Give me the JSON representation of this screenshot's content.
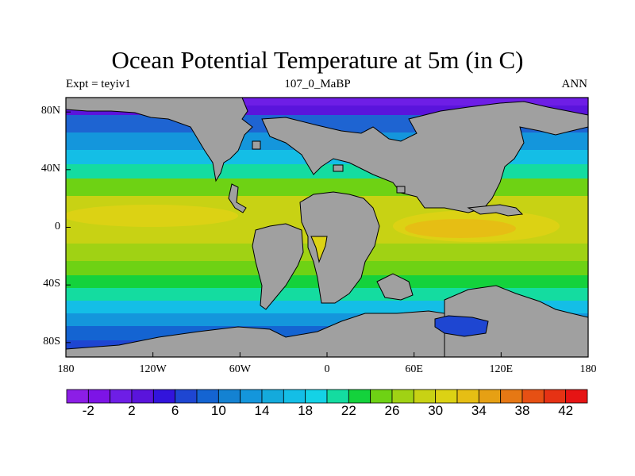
{
  "title": "Ocean Potential Temperature at 5m (in C)",
  "left_string": "Expt = teyiv1",
  "center_string": "107_0_MaBP",
  "right_string": "ANN",
  "map": {
    "projection": "cylindrical-equidistant",
    "lon_range": [
      -180,
      180
    ],
    "lat_range": [
      -90,
      90
    ],
    "lat_tick_labels": [
      "80N",
      "40N",
      "0",
      "40S",
      "80S"
    ],
    "lat_tick_values": [
      80,
      40,
      0,
      -40,
      -80
    ],
    "lon_tick_labels": [
      "180",
      "120W",
      "60W",
      "0",
      "60E",
      "120E",
      "180"
    ],
    "lon_tick_values": [
      -180,
      -120,
      -60,
      0,
      60,
      120,
      180
    ],
    "land_color": "#a0a0a0"
  },
  "colorbar": {
    "labels": [
      "-2",
      "2",
      "6",
      "10",
      "14",
      "18",
      "22",
      "26",
      "30",
      "34",
      "38",
      "42"
    ],
    "colors": [
      "#8c1ee6",
      "#7d14e6",
      "#6e1ee6",
      "#5a14dc",
      "#3214dc",
      "#1e46d2",
      "#1464d2",
      "#1482d2",
      "#1496dc",
      "#14aadc",
      "#14bee6",
      "#14d2e6",
      "#14dca0",
      "#14d23c",
      "#6ed214",
      "#a0d214",
      "#c8d214",
      "#dcd214",
      "#e6be14",
      "#e6a014",
      "#e67814",
      "#e65014",
      "#e63214",
      "#e61414"
    ]
  }
}
